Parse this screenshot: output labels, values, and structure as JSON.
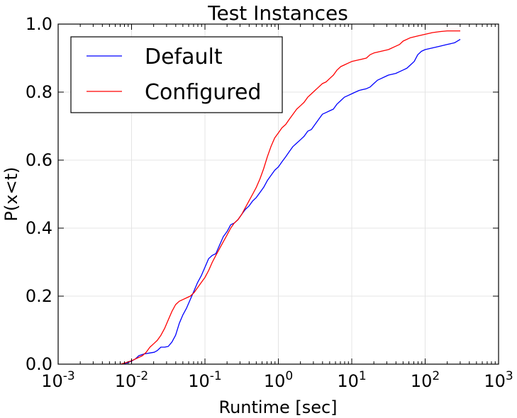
{
  "chart_data": {
    "type": "line",
    "title": "Test Instances",
    "xlabel": "Runtime [sec]",
    "ylabel": "P(x<t)",
    "x_scale": "log",
    "xlim": [
      0.001,
      1000
    ],
    "ylim": [
      0.0,
      1.0
    ],
    "grid": true,
    "legend_position": "top-left",
    "x_ticks": [
      {
        "value": 0.001,
        "base": "10",
        "exp": "-3"
      },
      {
        "value": 0.01,
        "base": "10",
        "exp": "-2"
      },
      {
        "value": 0.1,
        "base": "10",
        "exp": "-1"
      },
      {
        "value": 1,
        "base": "10",
        "exp": "0"
      },
      {
        "value": 10,
        "base": "10",
        "exp": "1"
      },
      {
        "value": 100,
        "base": "10",
        "exp": "2"
      },
      {
        "value": 1000,
        "base": "10",
        "exp": "3"
      }
    ],
    "y_ticks": [
      {
        "value": 0.0,
        "label": "0.0"
      },
      {
        "value": 0.2,
        "label": "0.2"
      },
      {
        "value": 0.4,
        "label": "0.4"
      },
      {
        "value": 0.6,
        "label": "0.6"
      },
      {
        "value": 0.8,
        "label": "0.8"
      },
      {
        "value": 1.0,
        "label": "1.0"
      }
    ],
    "series": [
      {
        "name": "Default",
        "color": "#0000ff",
        "points": [
          [
            0.0074,
            0.0
          ],
          [
            0.0085,
            0.003
          ],
          [
            0.0098,
            0.008
          ],
          [
            0.0112,
            0.015
          ],
          [
            0.0126,
            0.025
          ],
          [
            0.0148,
            0.03
          ],
          [
            0.0178,
            0.033
          ],
          [
            0.0204,
            0.035
          ],
          [
            0.0224,
            0.04
          ],
          [
            0.0251,
            0.05
          ],
          [
            0.0282,
            0.05
          ],
          [
            0.0316,
            0.052
          ],
          [
            0.0355,
            0.065
          ],
          [
            0.0398,
            0.085
          ],
          [
            0.0447,
            0.12
          ],
          [
            0.0501,
            0.145
          ],
          [
            0.0562,
            0.165
          ],
          [
            0.0631,
            0.19
          ],
          [
            0.0708,
            0.215
          ],
          [
            0.0794,
            0.24
          ],
          [
            0.0891,
            0.26
          ],
          [
            0.1,
            0.285
          ],
          [
            0.112,
            0.31
          ],
          [
            0.126,
            0.32
          ],
          [
            0.141,
            0.325
          ],
          [
            0.158,
            0.35
          ],
          [
            0.178,
            0.375
          ],
          [
            0.2,
            0.39
          ],
          [
            0.224,
            0.41
          ],
          [
            0.251,
            0.415
          ],
          [
            0.282,
            0.425
          ],
          [
            0.316,
            0.44
          ],
          [
            0.355,
            0.455
          ],
          [
            0.398,
            0.465
          ],
          [
            0.447,
            0.48
          ],
          [
            0.501,
            0.49
          ],
          [
            0.562,
            0.505
          ],
          [
            0.631,
            0.52
          ],
          [
            0.708,
            0.54
          ],
          [
            0.794,
            0.555
          ],
          [
            0.891,
            0.57
          ],
          [
            1.0,
            0.58
          ],
          [
            1.12,
            0.595
          ],
          [
            1.26,
            0.61
          ],
          [
            1.41,
            0.625
          ],
          [
            1.58,
            0.64
          ],
          [
            1.78,
            0.65
          ],
          [
            2.0,
            0.66
          ],
          [
            2.24,
            0.67
          ],
          [
            2.51,
            0.685
          ],
          [
            2.82,
            0.69
          ],
          [
            3.16,
            0.705
          ],
          [
            3.55,
            0.72
          ],
          [
            3.98,
            0.735
          ],
          [
            4.47,
            0.74
          ],
          [
            5.01,
            0.745
          ],
          [
            5.62,
            0.75
          ],
          [
            6.31,
            0.765
          ],
          [
            7.08,
            0.775
          ],
          [
            7.94,
            0.785
          ],
          [
            8.91,
            0.79
          ],
          [
            10.0,
            0.795
          ],
          [
            11.2,
            0.8
          ],
          [
            12.6,
            0.805
          ],
          [
            15.8,
            0.81
          ],
          [
            17.8,
            0.815
          ],
          [
            19.95,
            0.825
          ],
          [
            22.4,
            0.835
          ],
          [
            25.1,
            0.84
          ],
          [
            28.2,
            0.845
          ],
          [
            31.6,
            0.85
          ],
          [
            39.8,
            0.855
          ],
          [
            44.7,
            0.86
          ],
          [
            50.1,
            0.865
          ],
          [
            56.2,
            0.87
          ],
          [
            63.1,
            0.88
          ],
          [
            70.8,
            0.89
          ],
          [
            79.4,
            0.91
          ],
          [
            89.1,
            0.92
          ],
          [
            100.0,
            0.925
          ],
          [
            125.9,
            0.93
          ],
          [
            158.5,
            0.935
          ],
          [
            199.5,
            0.94
          ],
          [
            251.2,
            0.945
          ],
          [
            301.0,
            0.955
          ]
        ]
      },
      {
        "name": "Configured",
        "color": "#ff0000",
        "points": [
          [
            0.0071,
            0.0
          ],
          [
            0.0085,
            0.005
          ],
          [
            0.01,
            0.01
          ],
          [
            0.0112,
            0.015
          ],
          [
            0.0126,
            0.02
          ],
          [
            0.0141,
            0.025
          ],
          [
            0.0158,
            0.035
          ],
          [
            0.0178,
            0.05
          ],
          [
            0.02,
            0.06
          ],
          [
            0.0224,
            0.07
          ],
          [
            0.0251,
            0.085
          ],
          [
            0.0282,
            0.105
          ],
          [
            0.0316,
            0.13
          ],
          [
            0.0355,
            0.155
          ],
          [
            0.0398,
            0.175
          ],
          [
            0.0447,
            0.185
          ],
          [
            0.0501,
            0.19
          ],
          [
            0.0562,
            0.195
          ],
          [
            0.0631,
            0.2
          ],
          [
            0.0708,
            0.21
          ],
          [
            0.0794,
            0.225
          ],
          [
            0.0891,
            0.24
          ],
          [
            0.1,
            0.255
          ],
          [
            0.112,
            0.275
          ],
          [
            0.126,
            0.3
          ],
          [
            0.141,
            0.32
          ],
          [
            0.158,
            0.34
          ],
          [
            0.178,
            0.36
          ],
          [
            0.2,
            0.38
          ],
          [
            0.224,
            0.4
          ],
          [
            0.251,
            0.415
          ],
          [
            0.282,
            0.425
          ],
          [
            0.316,
            0.44
          ],
          [
            0.355,
            0.46
          ],
          [
            0.398,
            0.48
          ],
          [
            0.447,
            0.5
          ],
          [
            0.501,
            0.52
          ],
          [
            0.562,
            0.545
          ],
          [
            0.631,
            0.575
          ],
          [
            0.708,
            0.61
          ],
          [
            0.794,
            0.64
          ],
          [
            0.891,
            0.665
          ],
          [
            1.0,
            0.68
          ],
          [
            1.12,
            0.695
          ],
          [
            1.26,
            0.705
          ],
          [
            1.41,
            0.72
          ],
          [
            1.58,
            0.735
          ],
          [
            1.78,
            0.75
          ],
          [
            2.0,
            0.76
          ],
          [
            2.24,
            0.77
          ],
          [
            2.51,
            0.785
          ],
          [
            2.82,
            0.795
          ],
          [
            3.16,
            0.805
          ],
          [
            3.55,
            0.815
          ],
          [
            3.98,
            0.825
          ],
          [
            4.47,
            0.83
          ],
          [
            5.01,
            0.84
          ],
          [
            5.62,
            0.85
          ],
          [
            6.31,
            0.865
          ],
          [
            7.08,
            0.875
          ],
          [
            7.94,
            0.88
          ],
          [
            8.91,
            0.885
          ],
          [
            10.0,
            0.89
          ],
          [
            12.6,
            0.895
          ],
          [
            15.8,
            0.9
          ],
          [
            17.8,
            0.91
          ],
          [
            20.0,
            0.915
          ],
          [
            25.1,
            0.92
          ],
          [
            31.6,
            0.925
          ],
          [
            39.8,
            0.935
          ],
          [
            44.7,
            0.94
          ],
          [
            50.1,
            0.95
          ],
          [
            63.1,
            0.96
          ],
          [
            79.4,
            0.965
          ],
          [
            100.0,
            0.97
          ],
          [
            125.9,
            0.975
          ],
          [
            158.5,
            0.978
          ],
          [
            199.5,
            0.98
          ],
          [
            301.0,
            0.98
          ]
        ]
      }
    ]
  }
}
